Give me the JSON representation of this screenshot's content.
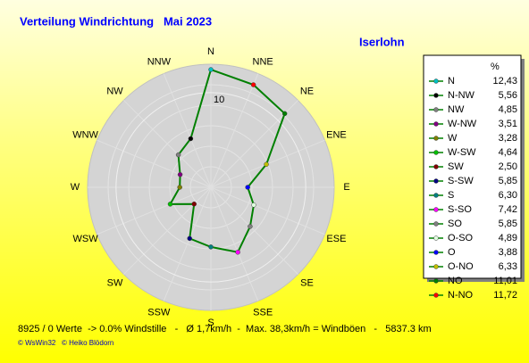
{
  "chart_data": {
    "type": "radar",
    "title": "Verteilung Windrichtung   Mai 2023",
    "subtitle": "Iserlohn",
    "categories": [
      "N",
      "NNE",
      "NE",
      "ENE",
      "E",
      "ESE",
      "SE",
      "SSE",
      "S",
      "SSW",
      "SW",
      "WSW",
      "W",
      "WNW",
      "NW",
      "NNW"
    ],
    "legend_header": "%",
    "legend_labels": [
      "N",
      "N-NW",
      "NW",
      "W-NW",
      "W",
      "W-SW",
      "SW",
      "S-SW",
      "S",
      "S-SO",
      "SO",
      "O-SO",
      "O",
      "O-NO",
      "NO",
      "N-NO"
    ],
    "values": [
      12.43,
      5.56,
      4.85,
      3.51,
      3.28,
      4.64,
      2.5,
      5.85,
      6.3,
      7.42,
      5.85,
      4.89,
      3.88,
      6.33,
      11.01,
      11.72
    ],
    "value_labels": [
      "12,43",
      "5,56",
      "4,85",
      "3,51",
      "3,28",
      "4,64",
      "2,50",
      "5,85",
      "6,30",
      "7,42",
      "5,85",
      "4,89",
      "3,88",
      "6,33",
      "11,01",
      "11,72"
    ],
    "colors": [
      "#00c0c0",
      "#000000",
      "#808080",
      "#800080",
      "#808000",
      "#00c000",
      "#800000",
      "#000080",
      "#008080",
      "#ff00ff",
      "#808080",
      "#e0ffe0",
      "#0000ff",
      "#c0c000",
      "#008000",
      "#ff0000"
    ],
    "line_color": "#008000",
    "ylim": [
      0,
      13
    ],
    "yticks": [
      10
    ],
    "footer": "8925 / 0 Werte  -> 0.0% Windstille   -   Ø 1,7km/h  -  Max. 38,3km/h = Windböen   -   5837.3 km",
    "copyright": "© WsWin32   © Heiko Blödorn"
  }
}
